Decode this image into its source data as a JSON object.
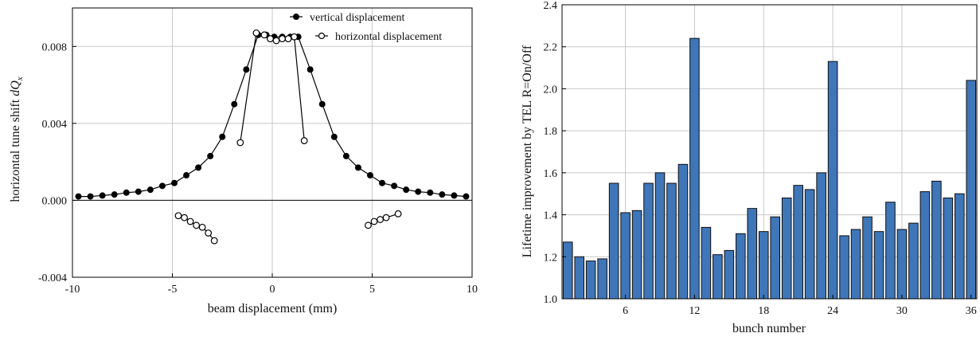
{
  "chart_data": [
    {
      "type": "line",
      "xlabel": "beam displacement  (mm)",
      "ylabel_main": "horizontal tune shift ",
      "ylabel_symbol": "dQ",
      "ylabel_subscript": "x",
      "xlim": [
        -10,
        10
      ],
      "ylim": [
        -0.004,
        0.01
      ],
      "xticks": [
        -10,
        -5,
        0,
        5,
        10
      ],
      "xtick_labels": [
        "-10",
        "-5",
        "0",
        "5",
        "10"
      ],
      "yticks": [
        -0.004,
        0,
        0.004,
        0.008
      ],
      "ytick_labels": [
        "-0.004",
        "0.000",
        "0.004",
        "0.008"
      ],
      "grid": true,
      "legend_position": "top-right",
      "colors": {
        "line": "#000000",
        "grid": "#c8c8c8"
      },
      "series": [
        {
          "name": "vertical displacement",
          "marker": "filled-circle",
          "segments": [
            [
              {
                "x": -9.7,
                "y": 0.0002
              },
              {
                "x": -9.1,
                "y": 0.0002
              },
              {
                "x": -8.5,
                "y": 0.00025
              },
              {
                "x": -7.9,
                "y": 0.0003
              },
              {
                "x": -7.3,
                "y": 0.0004
              },
              {
                "x": -6.7,
                "y": 0.00045
              },
              {
                "x": -6.1,
                "y": 0.00055
              },
              {
                "x": -5.5,
                "y": 0.00075
              },
              {
                "x": -4.9,
                "y": 0.0009
              },
              {
                "x": -4.3,
                "y": 0.0013
              },
              {
                "x": -3.7,
                "y": 0.0017
              },
              {
                "x": -3.1,
                "y": 0.0023
              },
              {
                "x": -2.5,
                "y": 0.0033
              },
              {
                "x": -1.9,
                "y": 0.005
              },
              {
                "x": -1.3,
                "y": 0.0068
              },
              {
                "x": -0.7,
                "y": 0.0086
              },
              {
                "x": -0.3,
                "y": 0.0086
              },
              {
                "x": 0.1,
                "y": 0.0085
              },
              {
                "x": 0.5,
                "y": 0.0085
              },
              {
                "x": 0.9,
                "y": 0.0085
              },
              {
                "x": 1.3,
                "y": 0.0085
              },
              {
                "x": 1.9,
                "y": 0.0068
              },
              {
                "x": 2.5,
                "y": 0.005
              },
              {
                "x": 3.1,
                "y": 0.0033
              },
              {
                "x": 3.7,
                "y": 0.0023
              },
              {
                "x": 4.3,
                "y": 0.0017
              },
              {
                "x": 4.9,
                "y": 0.0013
              },
              {
                "x": 5.5,
                "y": 0.0009
              },
              {
                "x": 6.1,
                "y": 0.00075
              },
              {
                "x": 6.7,
                "y": 0.00055
              },
              {
                "x": 7.3,
                "y": 0.00045
              },
              {
                "x": 7.9,
                "y": 0.0004
              },
              {
                "x": 8.5,
                "y": 0.0003
              },
              {
                "x": 9.1,
                "y": 0.00025
              },
              {
                "x": 9.7,
                "y": 0.0002
              }
            ]
          ]
        },
        {
          "name": "horizontal displacement",
          "marker": "open-circle",
          "segments": [
            [
              {
                "x": -1.6,
                "y": 0.003
              },
              {
                "x": -0.8,
                "y": 0.0087
              },
              {
                "x": -0.4,
                "y": 0.0086
              },
              {
                "x": -0.1,
                "y": 0.0084
              },
              {
                "x": 0.2,
                "y": 0.0083
              },
              {
                "x": 0.5,
                "y": 0.0084
              },
              {
                "x": 0.8,
                "y": 0.0084
              },
              {
                "x": 1.1,
                "y": 0.0085
              },
              {
                "x": 1.6,
                "y": 0.0031
              }
            ],
            [
              {
                "x": -4.7,
                "y": -0.0008
              },
              {
                "x": -4.4,
                "y": -0.0009
              },
              {
                "x": -4.1,
                "y": -0.0011
              },
              {
                "x": -3.8,
                "y": -0.0013
              },
              {
                "x": -3.5,
                "y": -0.0014
              },
              {
                "x": -3.2,
                "y": -0.0017
              },
              {
                "x": -2.9,
                "y": -0.0021
              }
            ],
            [
              {
                "x": 4.8,
                "y": -0.0013
              },
              {
                "x": 5.1,
                "y": -0.0011
              },
              {
                "x": 5.4,
                "y": -0.001
              },
              {
                "x": 5.7,
                "y": -0.0009
              },
              {
                "x": 6.3,
                "y": -0.0007
              }
            ]
          ]
        }
      ]
    },
    {
      "type": "bar",
      "xlabel": "bunch number",
      "ylabel": "Lifetime improvement by TEL R=On/Off",
      "xlim": [
        0.5,
        36.5
      ],
      "ylim": [
        1.0,
        2.4
      ],
      "xticks": [
        6,
        12,
        18,
        24,
        30,
        36
      ],
      "xtick_labels": [
        "6",
        "12",
        "18",
        "24",
        "30",
        "36"
      ],
      "yticks": [
        1.0,
        1.2,
        1.4,
        1.6,
        1.8,
        2.0,
        2.2,
        2.4
      ],
      "ytick_labels": [
        "1.0",
        "1.2",
        "1.4",
        "1.6",
        "1.8",
        "2.0",
        "2.2",
        "2.4"
      ],
      "grid": true,
      "colors": {
        "bar_fill": "#3f76b8",
        "bar_edge": "#0e0e0e",
        "grid": "#c8c8c8"
      },
      "categories": [
        1,
        2,
        3,
        4,
        5,
        6,
        7,
        8,
        9,
        10,
        11,
        12,
        13,
        14,
        15,
        16,
        17,
        18,
        19,
        20,
        21,
        22,
        23,
        24,
        25,
        26,
        27,
        28,
        29,
        30,
        31,
        32,
        33,
        34,
        35,
        36
      ],
      "values": [
        1.27,
        1.2,
        1.18,
        1.19,
        1.55,
        1.41,
        1.42,
        1.55,
        1.6,
        1.55,
        1.64,
        2.24,
        1.34,
        1.21,
        1.23,
        1.31,
        1.43,
        1.32,
        1.39,
        1.48,
        1.54,
        1.52,
        1.6,
        2.13,
        1.3,
        1.33,
        1.39,
        1.32,
        1.46,
        1.33,
        1.36,
        1.51,
        1.56,
        1.48,
        1.5,
        2.04
      ]
    }
  ]
}
